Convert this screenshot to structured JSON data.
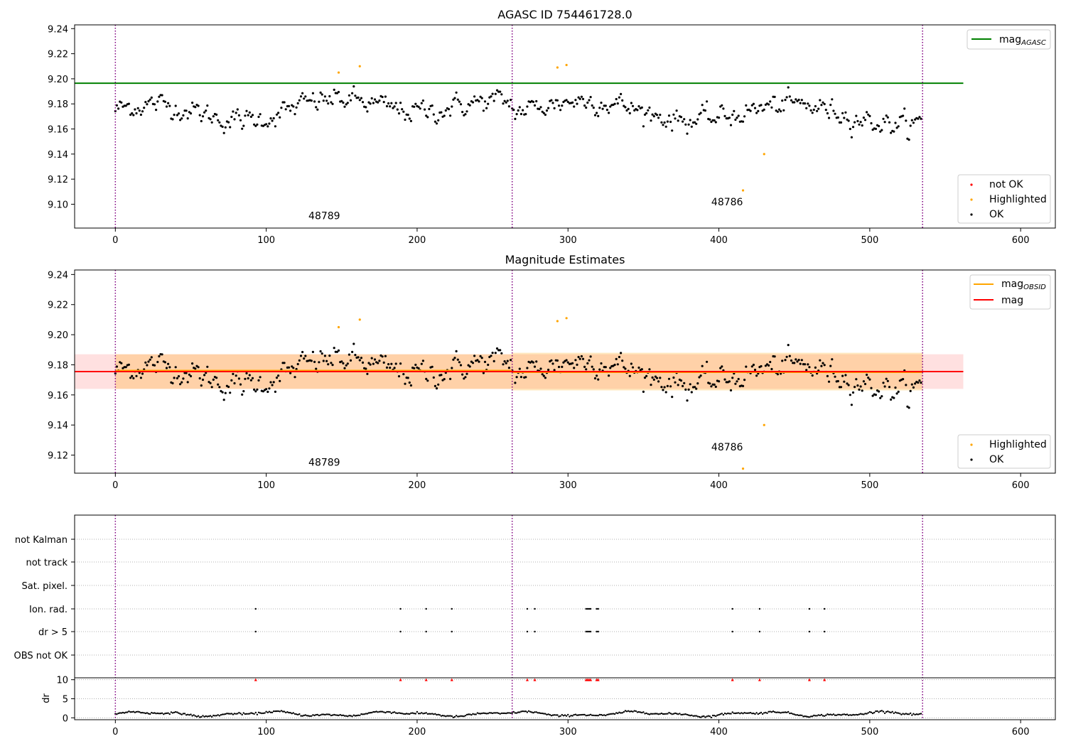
{
  "chart_data": [
    {
      "type": "scatter",
      "title": "AGASC ID 754461728.0",
      "xlim": [
        -27,
        623
      ],
      "ylim": [
        9.081,
        9.243
      ],
      "x_ticks": [
        0,
        100,
        200,
        300,
        400,
        500,
        600
      ],
      "y_ticks": [
        9.1,
        9.12,
        9.14,
        9.16,
        9.18,
        9.2,
        9.22,
        9.24
      ],
      "obsid_boundaries": [
        0,
        263,
        535
      ],
      "obsid_labels": [
        {
          "text": "48789",
          "x": 130,
          "y": 9.088
        },
        {
          "text": "48786",
          "x": 397,
          "y": 9.099
        }
      ],
      "lines": [
        {
          "name": "mag_AGASC",
          "label_main": "mag",
          "label_sub": "AGASC",
          "color": "#008000",
          "y": 9.1965,
          "x_start": -27,
          "x_end": 562
        }
      ],
      "legend_series": [
        "not OK",
        "Highlighted",
        "OK"
      ],
      "series": [
        {
          "name": "not OK",
          "color": "#ff0000",
          "points": []
        },
        {
          "name": "Highlighted",
          "color": "#ffa500",
          "points": [
            [
              148,
              9.205
            ],
            [
              162,
              9.21
            ],
            [
              293,
              9.209
            ],
            [
              299,
              9.211
            ],
            [
              430,
              9.14
            ],
            [
              416,
              9.111
            ]
          ]
        },
        {
          "name": "OK",
          "color": "#000000",
          "n": 535
        }
      ]
    },
    {
      "type": "scatter",
      "title": "Magnitude Estimates",
      "xlim": [
        -27,
        623
      ],
      "ylim": [
        9.108,
        9.243
      ],
      "x_ticks": [
        0,
        100,
        200,
        300,
        400,
        500,
        600
      ],
      "y_ticks": [
        9.12,
        9.14,
        9.16,
        9.18,
        9.2,
        9.22,
        9.24
      ],
      "obsid_boundaries": [
        0,
        263,
        535
      ],
      "obsid_labels": [
        {
          "text": "48789",
          "x": 130,
          "y": 9.113
        },
        {
          "text": "48786",
          "x": 397,
          "y": 9.123
        }
      ],
      "bands": [
        {
          "name": "mag",
          "color": "#ff0000",
          "opacity": 0.12,
          "y_low": 9.164,
          "y_high": 9.187,
          "x_start": -27,
          "x_end": 562
        },
        {
          "name": "mag_OBSID 48789",
          "color": "#ffa500",
          "opacity": 0.25,
          "y_low": 9.164,
          "y_high": 9.187,
          "x_start": 0,
          "x_end": 263
        },
        {
          "name": "mag_OBSID 48786",
          "color": "#ffa500",
          "opacity": 0.25,
          "y_low": 9.163,
          "y_high": 9.188,
          "x_start": 263,
          "x_end": 535
        }
      ],
      "lines": [
        {
          "name": "mag_OBSID",
          "label_main": "mag",
          "label_sub": "OBSID",
          "color": "#ffa500",
          "segments": [
            [
              0,
              263,
              9.1762
            ],
            [
              263,
              535,
              9.175
            ]
          ]
        },
        {
          "name": "mag",
          "label_main": "mag",
          "color": "#ff0000",
          "y": 9.1755,
          "x_start": -27,
          "x_end": 562
        }
      ],
      "legend_series": [
        "Highlighted",
        "OK"
      ],
      "series": [
        {
          "name": "Highlighted",
          "color": "#ffa500",
          "points": [
            [
              148,
              9.205
            ],
            [
              162,
              9.21
            ],
            [
              293,
              9.209
            ],
            [
              299,
              9.211
            ],
            [
              430,
              9.14
            ],
            [
              416,
              9.111
            ]
          ]
        },
        {
          "name": "OK",
          "color": "#000000",
          "n": 535
        }
      ]
    },
    {
      "type": "scatter",
      "title": "",
      "xlim": [
        -27,
        623
      ],
      "x_ticks": [
        0,
        100,
        200,
        300,
        400,
        500,
        600
      ],
      "flag_rows": [
        "not Kalman",
        "not track",
        "Sat. pixel.",
        "Ion. rad.",
        "dr > 5",
        "OBS not OK"
      ],
      "flag_points": {
        "Ion. rad.": [
          93,
          189,
          206,
          223,
          273,
          278,
          312,
          313,
          314,
          315,
          319,
          320,
          409,
          427,
          460,
          470
        ],
        "dr > 5": [
          93,
          189,
          206,
          223,
          273,
          278,
          312,
          313,
          314,
          315,
          319,
          320,
          409,
          427,
          460,
          470
        ]
      },
      "dr_panel": {
        "ylabel": "dr",
        "ylim": [
          -0.5,
          10.5
        ],
        "y_ticks": [
          0,
          5,
          10
        ],
        "clip_markers_x": [
          93,
          189,
          206,
          223,
          273,
          278,
          312,
          313,
          314,
          315,
          319,
          320,
          409,
          427,
          460,
          470
        ],
        "clip_marker_color": "#ff0000"
      },
      "obsid_boundaries": [
        0,
        263,
        535
      ]
    }
  ]
}
